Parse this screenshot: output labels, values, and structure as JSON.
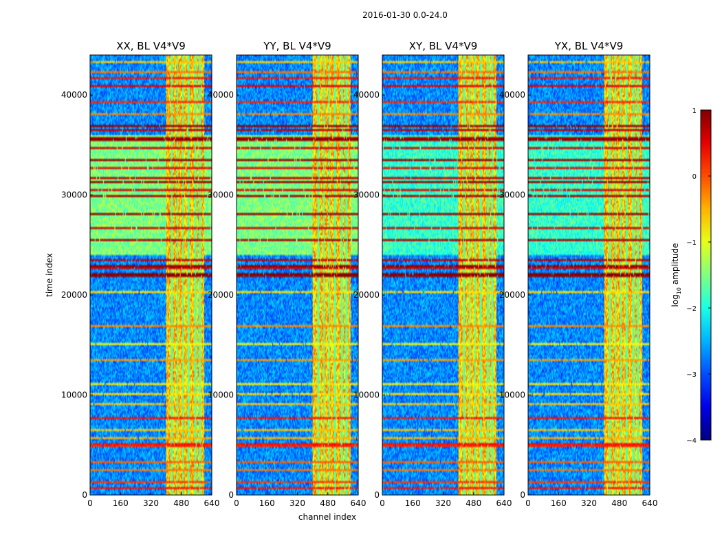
{
  "figure": {
    "suptitle": "2016-01-30 0.0-24.0",
    "xlabel": "channel index",
    "ylabel": "time index"
  },
  "colorbar": {
    "label_prefix": "log",
    "label_sub": "10",
    "label_suffix": " amplitude",
    "vmin": -4,
    "vmax": 1,
    "ticks": [
      1,
      0,
      -1,
      -2,
      -3,
      -4
    ],
    "tick_labels": [
      "1",
      "0",
      "−1",
      "−2",
      "−3",
      "−4"
    ],
    "colormap": "jet"
  },
  "chart_data": [
    {
      "type": "heatmap",
      "title": "XX, BL V4*V9",
      "polarization": "XX",
      "xlabel": "channel index",
      "ylabel": "time index",
      "xlim": [
        0,
        640
      ],
      "ylim": [
        0,
        44000
      ],
      "xticks": [
        0,
        160,
        320,
        480,
        640
      ],
      "yticks": [
        0,
        10000,
        20000,
        30000,
        40000
      ],
      "xtick_labels": [
        "0",
        "160",
        "320",
        "480",
        "640"
      ],
      "ytick_labels": [
        "0",
        "10000",
        "20000",
        "30000",
        "40000"
      ]
    },
    {
      "type": "heatmap",
      "title": "YY, BL V4*V9",
      "polarization": "YY",
      "xlabel": "channel index",
      "ylabel": "time index",
      "xlim": [
        0,
        640
      ],
      "ylim": [
        0,
        44000
      ],
      "xticks": [
        0,
        160,
        320,
        480,
        640
      ],
      "yticks": [
        0,
        10000,
        20000,
        30000,
        40000
      ],
      "xtick_labels": [
        "0",
        "160",
        "320",
        "480",
        "640"
      ],
      "ytick_labels": [
        "0",
        "10000",
        "20000",
        "30000",
        "40000"
      ]
    },
    {
      "type": "heatmap",
      "title": "XY, BL V4*V9",
      "polarization": "XY",
      "xlabel": "channel index",
      "ylabel": "time index",
      "xlim": [
        0,
        640
      ],
      "ylim": [
        0,
        44000
      ],
      "xticks": [
        0,
        160,
        320,
        480,
        640
      ],
      "yticks": [
        0,
        10000,
        20000,
        30000,
        40000
      ],
      "xtick_labels": [
        "0",
        "160",
        "320",
        "480",
        "640"
      ],
      "ytick_labels": [
        "0",
        "10000",
        "20000",
        "30000",
        "40000"
      ]
    },
    {
      "type": "heatmap",
      "title": "YX, BL V4*V9",
      "polarization": "YX",
      "xlabel": "channel index",
      "ylabel": "time index",
      "xlim": [
        0,
        640
      ],
      "ylim": [
        0,
        44000
      ],
      "xticks": [
        0,
        160,
        320,
        480,
        640
      ],
      "yticks": [
        0,
        10000,
        20000,
        30000,
        40000
      ],
      "xtick_labels": [
        "0",
        "160",
        "320",
        "480",
        "640"
      ],
      "ytick_labels": [
        "0",
        "10000",
        "20000",
        "30000",
        "40000"
      ]
    }
  ],
  "features": {
    "rfi_band_channels": [
      400,
      600
    ],
    "rfi_band_value": -0.6,
    "rfi_columns": [
      430,
      460,
      490,
      520,
      555,
      580
    ],
    "background_value": -2.7,
    "elevated_time_ranges": [
      [
        24000,
        36000
      ]
    ],
    "elevated_value": -1.5,
    "flagged_rows": [
      {
        "time": 700,
        "value": 0.3
      },
      {
        "time": 1200,
        "value": 0.1
      },
      {
        "time": 2500,
        "value": -0.2
      },
      {
        "time": 3300,
        "value": -0.1
      },
      {
        "time": 4900,
        "value": 0.2
      },
      {
        "time": 5100,
        "value": 0.3
      },
      {
        "time": 5600,
        "value": -0.5
      },
      {
        "time": 6400,
        "value": -0.6
      },
      {
        "time": 7600,
        "value": 0.4
      },
      {
        "time": 7700,
        "value": 0.3
      },
      {
        "time": 9100,
        "value": -0.6
      },
      {
        "time": 10100,
        "value": -0.7
      },
      {
        "time": 11100,
        "value": -0.8
      },
      {
        "time": 13500,
        "value": -0.4
      },
      {
        "time": 15000,
        "value": -0.9
      },
      {
        "time": 16900,
        "value": -0.3
      },
      {
        "time": 20200,
        "value": -0.7
      },
      {
        "time": 21900,
        "value": 0.9
      },
      {
        "time": 22200,
        "value": 1.0
      },
      {
        "time": 22700,
        "value": 0.6
      },
      {
        "time": 23000,
        "value": 0.9
      },
      {
        "time": 23500,
        "value": 0.7
      },
      {
        "time": 25600,
        "value": 0.8
      },
      {
        "time": 26700,
        "value": 0.6
      },
      {
        "time": 28100,
        "value": 0.9
      },
      {
        "time": 30000,
        "value": 0.8
      },
      {
        "time": 30500,
        "value": 0.6
      },
      {
        "time": 31400,
        "value": 0.9
      },
      {
        "time": 31700,
        "value": 0.7
      },
      {
        "time": 32800,
        "value": 0.5
      },
      {
        "time": 33600,
        "value": 0.9
      },
      {
        "time": 34800,
        "value": 0.6
      },
      {
        "time": 35500,
        "value": 0.9
      },
      {
        "time": 35800,
        "value": 0.8
      },
      {
        "time": 36500,
        "value": 0.7
      },
      {
        "time": 36900,
        "value": 0.9
      },
      {
        "time": 38200,
        "value": -0.3
      },
      {
        "time": 39400,
        "value": 0.2
      },
      {
        "time": 41000,
        "value": 0.5
      },
      {
        "time": 41800,
        "value": 0.3
      },
      {
        "time": 42400,
        "value": -0.2
      },
      {
        "time": 43300,
        "value": -0.6
      }
    ]
  }
}
